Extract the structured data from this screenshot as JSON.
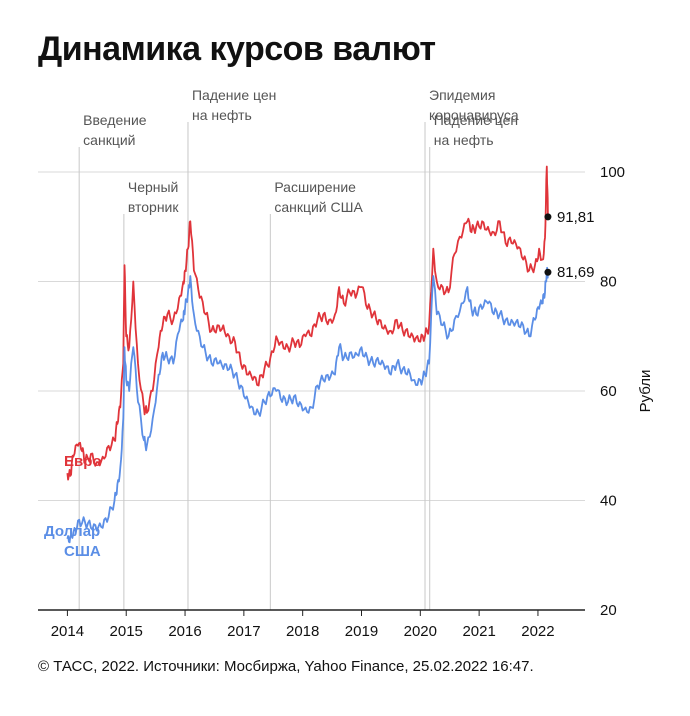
{
  "title": "Динамика курсов валют",
  "source": "© ТАСС, 2022. Источники: Мосбиржа, Yahoo Finance, 25.02.2022 16:47.",
  "colors": {
    "euro": "#e0343a",
    "dollar": "#5b8ee6",
    "grid": "#d9d9d9",
    "event": "#c8c8c8"
  },
  "chart_data": {
    "type": "line",
    "ylabel": "Рубли",
    "ylim": [
      20,
      100
    ],
    "yticks": [
      20,
      40,
      60,
      80,
      100
    ],
    "xlim": [
      2013.5,
      2022.8
    ],
    "xticks": [
      "2014",
      "2015",
      "2016",
      "2017",
      "2018",
      "2019",
      "2020",
      "2021",
      "2022"
    ],
    "grid": true,
    "annotations": [
      {
        "x": 2014.2,
        "lines": [
          "Введение",
          "санкций"
        ],
        "level": 2
      },
      {
        "x": 2014.96,
        "lines": [
          "Черный",
          "вторник"
        ],
        "level": 3
      },
      {
        "x": 2016.05,
        "lines": [
          "Падение цен",
          "на нефть"
        ],
        "level": 1
      },
      {
        "x": 2017.45,
        "lines": [
          "Расширение",
          "санкций США"
        ],
        "level": 3
      },
      {
        "x": 2020.08,
        "lines": [
          "Эпидемия",
          "коронавируса"
        ],
        "level": 1
      },
      {
        "x": 2020.16,
        "lines": [
          "Падение цен",
          "на нефть"
        ],
        "level": 2
      }
    ],
    "series": [
      {
        "name": "Евро",
        "end_label": "91,81",
        "points": [
          [
            2014.0,
            45
          ],
          [
            2014.05,
            44.5
          ],
          [
            2014.1,
            48
          ],
          [
            2014.18,
            50
          ],
          [
            2014.25,
            49
          ],
          [
            2014.3,
            47
          ],
          [
            2014.4,
            48.5
          ],
          [
            2014.5,
            47
          ],
          [
            2014.6,
            48
          ],
          [
            2014.7,
            50
          ],
          [
            2014.8,
            51
          ],
          [
            2014.85,
            54
          ],
          [
            2014.9,
            57
          ],
          [
            2014.95,
            65
          ],
          [
            2014.97,
            83
          ],
          [
            2015.0,
            70
          ],
          [
            2015.05,
            68
          ],
          [
            2015.12,
            80
          ],
          [
            2015.2,
            65
          ],
          [
            2015.3,
            57
          ],
          [
            2015.35,
            56
          ],
          [
            2015.45,
            60
          ],
          [
            2015.55,
            68
          ],
          [
            2015.62,
            72
          ],
          [
            2015.7,
            74
          ],
          [
            2015.8,
            73
          ],
          [
            2015.9,
            77
          ],
          [
            2015.97,
            80
          ],
          [
            2016.0,
            82
          ],
          [
            2016.05,
            86
          ],
          [
            2016.09,
            91
          ],
          [
            2016.15,
            82
          ],
          [
            2016.25,
            77
          ],
          [
            2016.35,
            74
          ],
          [
            2016.45,
            71
          ],
          [
            2016.55,
            72
          ],
          [
            2016.65,
            72
          ],
          [
            2016.75,
            70
          ],
          [
            2016.85,
            69
          ],
          [
            2016.95,
            65
          ],
          [
            2017.05,
            63
          ],
          [
            2017.15,
            62
          ],
          [
            2017.25,
            61
          ],
          [
            2017.35,
            64
          ],
          [
            2017.45,
            66
          ],
          [
            2017.55,
            70
          ],
          [
            2017.65,
            69
          ],
          [
            2017.75,
            68
          ],
          [
            2017.85,
            69
          ],
          [
            2017.95,
            68
          ],
          [
            2018.05,
            70
          ],
          [
            2018.15,
            70
          ],
          [
            2018.25,
            73
          ],
          [
            2018.35,
            74
          ],
          [
            2018.45,
            73
          ],
          [
            2018.55,
            74
          ],
          [
            2018.62,
            79
          ],
          [
            2018.7,
            76
          ],
          [
            2018.8,
            78
          ],
          [
            2018.9,
            77
          ],
          [
            2019.0,
            79
          ],
          [
            2019.1,
            75
          ],
          [
            2019.2,
            74
          ],
          [
            2019.3,
            73
          ],
          [
            2019.4,
            72
          ],
          [
            2019.5,
            71
          ],
          [
            2019.6,
            73
          ],
          [
            2019.7,
            71
          ],
          [
            2019.8,
            70
          ],
          [
            2019.9,
            69
          ],
          [
            2020.0,
            69
          ],
          [
            2020.08,
            70
          ],
          [
            2020.15,
            72
          ],
          [
            2020.22,
            86
          ],
          [
            2020.28,
            80
          ],
          [
            2020.38,
            79
          ],
          [
            2020.48,
            78
          ],
          [
            2020.58,
            85
          ],
          [
            2020.7,
            88
          ],
          [
            2020.8,
            91
          ],
          [
            2020.87,
            89
          ],
          [
            2020.95,
            90
          ],
          [
            2021.05,
            91
          ],
          [
            2021.15,
            90
          ],
          [
            2021.25,
            89
          ],
          [
            2021.35,
            91
          ],
          [
            2021.45,
            87
          ],
          [
            2021.55,
            87
          ],
          [
            2021.65,
            86
          ],
          [
            2021.75,
            84
          ],
          [
            2021.85,
            82
          ],
          [
            2021.95,
            83
          ],
          [
            2022.02,
            86
          ],
          [
            2022.08,
            84
          ],
          [
            2022.12,
            88
          ],
          [
            2022.15,
            101
          ],
          [
            2022.17,
            91.81
          ]
        ]
      },
      {
        "name": "Доллар США",
        "end_label": "81,69",
        "points": [
          [
            2014.0,
            33
          ],
          [
            2014.05,
            33.5
          ],
          [
            2014.12,
            35
          ],
          [
            2014.2,
            36.5
          ],
          [
            2014.3,
            36
          ],
          [
            2014.4,
            35
          ],
          [
            2014.5,
            34.5
          ],
          [
            2014.6,
            35
          ],
          [
            2014.7,
            37
          ],
          [
            2014.8,
            40
          ],
          [
            2014.85,
            43
          ],
          [
            2014.9,
            46
          ],
          [
            2014.95,
            55
          ],
          [
            2014.97,
            68
          ],
          [
            2015.0,
            62
          ],
          [
            2015.05,
            60
          ],
          [
            2015.12,
            68
          ],
          [
            2015.2,
            58
          ],
          [
            2015.3,
            51
          ],
          [
            2015.35,
            50
          ],
          [
            2015.45,
            55
          ],
          [
            2015.55,
            63
          ],
          [
            2015.62,
            67
          ],
          [
            2015.7,
            66
          ],
          [
            2015.8,
            65
          ],
          [
            2015.9,
            71
          ],
          [
            2015.97,
            73
          ],
          [
            2016.0,
            75
          ],
          [
            2016.05,
            78
          ],
          [
            2016.09,
            81
          ],
          [
            2016.15,
            74
          ],
          [
            2016.25,
            70
          ],
          [
            2016.35,
            67
          ],
          [
            2016.45,
            65
          ],
          [
            2016.55,
            65
          ],
          [
            2016.65,
            64
          ],
          [
            2016.75,
            64
          ],
          [
            2016.85,
            63
          ],
          [
            2016.95,
            61
          ],
          [
            2017.05,
            59
          ],
          [
            2017.15,
            57
          ],
          [
            2017.25,
            56
          ],
          [
            2017.35,
            58
          ],
          [
            2017.45,
            59
          ],
          [
            2017.55,
            60
          ],
          [
            2017.65,
            58
          ],
          [
            2017.75,
            58
          ],
          [
            2017.85,
            59
          ],
          [
            2017.95,
            58
          ],
          [
            2018.05,
            57
          ],
          [
            2018.15,
            57
          ],
          [
            2018.25,
            61
          ],
          [
            2018.35,
            62
          ],
          [
            2018.45,
            62
          ],
          [
            2018.55,
            63
          ],
          [
            2018.62,
            68
          ],
          [
            2018.7,
            66
          ],
          [
            2018.8,
            67
          ],
          [
            2018.9,
            67
          ],
          [
            2019.0,
            68
          ],
          [
            2019.1,
            66
          ],
          [
            2019.2,
            65
          ],
          [
            2019.3,
            65
          ],
          [
            2019.4,
            64
          ],
          [
            2019.5,
            63
          ],
          [
            2019.6,
            65
          ],
          [
            2019.7,
            64
          ],
          [
            2019.8,
            64
          ],
          [
            2019.9,
            62
          ],
          [
            2020.0,
            62
          ],
          [
            2020.08,
            63
          ],
          [
            2020.15,
            65
          ],
          [
            2020.22,
            81
          ],
          [
            2020.28,
            74
          ],
          [
            2020.38,
            72
          ],
          [
            2020.48,
            70
          ],
          [
            2020.58,
            73
          ],
          [
            2020.7,
            76
          ],
          [
            2020.8,
            79
          ],
          [
            2020.87,
            75
          ],
          [
            2020.95,
            74
          ],
          [
            2021.05,
            75
          ],
          [
            2021.15,
            76
          ],
          [
            2021.25,
            74
          ],
          [
            2021.35,
            74
          ],
          [
            2021.45,
            73
          ],
          [
            2021.55,
            73
          ],
          [
            2021.65,
            73
          ],
          [
            2021.75,
            72
          ],
          [
            2021.85,
            70
          ],
          [
            2021.95,
            73
          ],
          [
            2022.02,
            75
          ],
          [
            2022.08,
            76
          ],
          [
            2022.12,
            78
          ],
          [
            2022.15,
            82
          ],
          [
            2022.17,
            81.69
          ]
        ]
      }
    ]
  }
}
